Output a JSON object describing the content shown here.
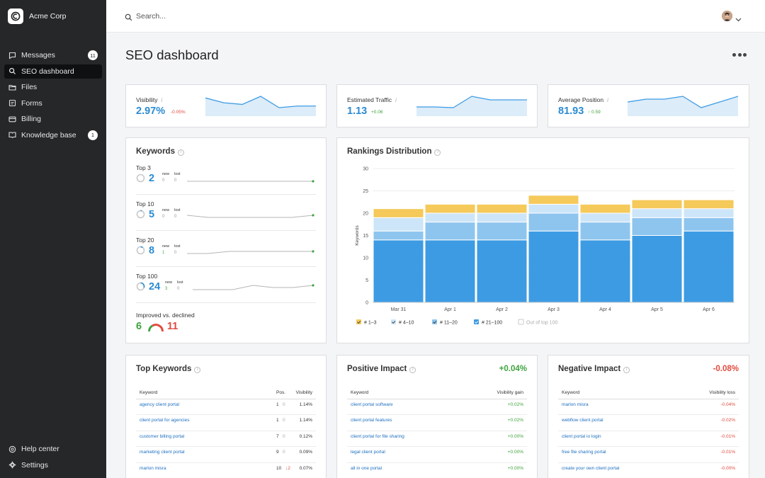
{
  "app": {
    "name": "Acme Corp"
  },
  "sidebar": {
    "items": [
      {
        "label": "Messages",
        "badge": "11",
        "icon": "message-icon"
      },
      {
        "label": "SEO dashboard",
        "icon": "search-icon",
        "active": true
      },
      {
        "label": "Files",
        "icon": "folder-icon"
      },
      {
        "label": "Forms",
        "icon": "form-icon"
      },
      {
        "label": "Billing",
        "icon": "billing-icon"
      },
      {
        "label": "Knowledge base",
        "badge": "1",
        "icon": "book-icon"
      }
    ],
    "bottom": [
      {
        "label": "Help center",
        "icon": "help-icon"
      },
      {
        "label": "Settings",
        "icon": "gear-icon"
      }
    ]
  },
  "search": {
    "placeholder": "Search..."
  },
  "page": {
    "title": "SEO dashboard"
  },
  "stats": [
    {
      "label": "Visibility",
      "info": "i",
      "value": "2.97%",
      "delta": "-0.05%",
      "delta_type": "down",
      "spark": [
        6,
        3,
        2,
        7,
        0,
        1,
        1
      ]
    },
    {
      "label": "Estimated Traffic",
      "info": "i",
      "value": "1.13",
      "delta": "+0.06",
      "delta_type": "up",
      "spark": [
        2,
        2,
        1.8,
        5,
        4,
        4,
        4
      ]
    },
    {
      "label": "Average Position",
      "info": "i",
      "value": "81.93",
      "delta": "↑ 0.59",
      "delta_type": "up",
      "spark": [
        4,
        5,
        5,
        6,
        2,
        4,
        6
      ]
    }
  ],
  "keywords": {
    "title": "Keywords",
    "new_label": "new",
    "lost_label": "lost",
    "groups": [
      {
        "label": "Top 3",
        "value": "2",
        "new": "0",
        "lost": "0",
        "ring": 0.0,
        "spark": [
          1,
          1,
          1,
          1,
          1,
          1,
          1
        ]
      },
      {
        "label": "Top 10",
        "value": "5",
        "new": "0",
        "lost": "0",
        "ring": 0.05,
        "spark": [
          2,
          1,
          1,
          1,
          1,
          1,
          2
        ]
      },
      {
        "label": "Top 20",
        "value": "8",
        "new": "1",
        "lost": "0",
        "ring": 0.1,
        "spark": [
          1,
          1,
          2,
          2,
          2,
          2,
          2
        ]
      },
      {
        "label": "Top 100",
        "value": "24",
        "new": "3",
        "lost": "0",
        "ring": 0.3,
        "spark": [
          1,
          1,
          1,
          3,
          2,
          2,
          3
        ]
      }
    ],
    "improved_label": "Improved vs. declined",
    "improved": "6",
    "declined": "11"
  },
  "rankings": {
    "title": "Rankings Distribution"
  },
  "chart_data": {
    "type": "bar",
    "stacked": true,
    "title": "Rankings Distribution",
    "ylabel": "Keywords",
    "xlabel": "",
    "ylim": [
      0,
      30
    ],
    "yticks": [
      0,
      5,
      10,
      15,
      20,
      25,
      30
    ],
    "categories": [
      "Mar 31",
      "Apr 1",
      "Apr 2",
      "Apr 3",
      "Apr 4",
      "Apr 5",
      "Apr 6"
    ],
    "series": [
      {
        "name": "# 21–100",
        "color": "#3d9be3",
        "values": [
          14,
          14,
          14,
          16,
          14,
          15,
          16
        ]
      },
      {
        "name": "# 11–20",
        "color": "#8ec5ef",
        "values": [
          2,
          4,
          4,
          4,
          4,
          4,
          3
        ]
      },
      {
        "name": "# 4–10",
        "color": "#cde5f8",
        "values": [
          3,
          2,
          2,
          2,
          2,
          2,
          2
        ]
      },
      {
        "name": "# 1–3",
        "color": "#f5c95a",
        "values": [
          2,
          2,
          2,
          2,
          2,
          2,
          2
        ]
      }
    ],
    "extra_legend": "Out of top 100",
    "legend_position": "bottom",
    "grid": true
  },
  "top_keywords": {
    "title": "Top Keywords",
    "columns": [
      "Keyword",
      "Pos.",
      "Visibility"
    ],
    "rows": [
      {
        "keyword": "agency client portal",
        "pos": "1",
        "change": "0",
        "visibility": "1.14%"
      },
      {
        "keyword": "client portal for agencies",
        "pos": "1",
        "change": "0",
        "visibility": "1.14%"
      },
      {
        "keyword": "customer billing portal",
        "pos": "7",
        "change": "0",
        "visibility": "0.12%"
      },
      {
        "keyword": "marketing client portal",
        "pos": "9",
        "change": "0",
        "visibility": "0.09%"
      },
      {
        "keyword": "marlon misra",
        "pos": "10",
        "change": "↓2",
        "visibility": "0.07%"
      }
    ]
  },
  "positive_impact": {
    "title": "Positive Impact",
    "total": "+0.04%",
    "columns": [
      "Keyword",
      "Visibility gain"
    ],
    "rows": [
      {
        "keyword": "client portal software",
        "value": "+0.02%"
      },
      {
        "keyword": "client portal features",
        "value": "+0.02%"
      },
      {
        "keyword": "client portal for file sharing",
        "value": "+0.00%"
      },
      {
        "keyword": "legal client portal",
        "value": "+0.00%"
      },
      {
        "keyword": "all in one portal",
        "value": "+0.00%"
      }
    ]
  },
  "negative_impact": {
    "title": "Negative Impact",
    "total": "-0.08%",
    "columns": [
      "Keyword",
      "Visibility loss"
    ],
    "rows": [
      {
        "keyword": "marlon misra",
        "value": "-0.04%"
      },
      {
        "keyword": "webflow client portal",
        "value": "-0.02%"
      },
      {
        "keyword": "client portal io login",
        "value": "-0.01%"
      },
      {
        "keyword": "free file sharing portal",
        "value": "-0.01%"
      },
      {
        "keyword": "create your own client portal",
        "value": "-0.00%"
      }
    ]
  },
  "colors": {
    "accent": "#2b8bd3",
    "positive": "#3fa33f",
    "negative": "#e04b3f",
    "sidebar": "#262729"
  }
}
